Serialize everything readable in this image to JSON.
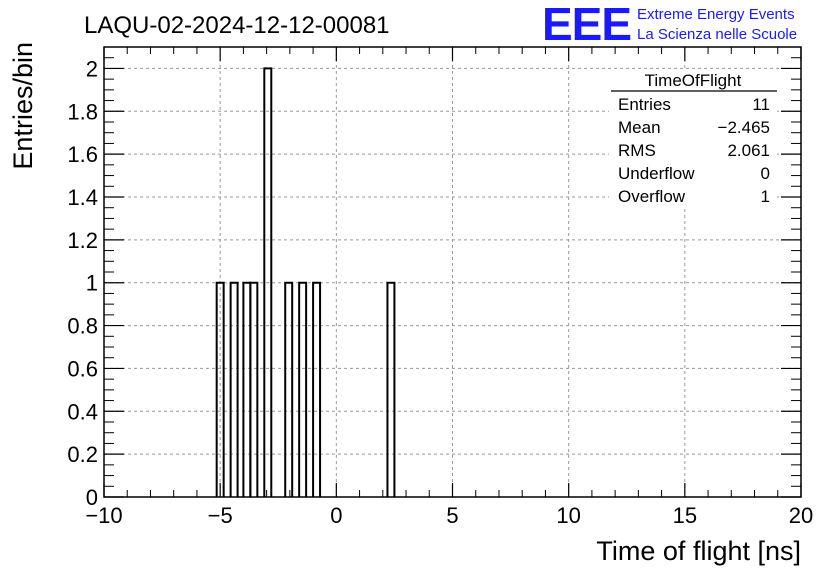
{
  "header": {
    "title": "LAQU-02-2024-12-12-00081",
    "logo_letters": "EEE",
    "logo_line1": "Extreme Energy Events",
    "logo_line2": "La Scienza nelle Scuole",
    "logo_color": "#1a1aff"
  },
  "stats": {
    "title": "TimeOfFlight",
    "rows": [
      {
        "label": "Entries",
        "value": "11"
      },
      {
        "label": "Mean",
        "value": "−2.465"
      },
      {
        "label": "RMS",
        "value": "2.061"
      },
      {
        "label": "Underflow",
        "value": "0"
      },
      {
        "label": "Overflow",
        "value": "1"
      }
    ]
  },
  "chart_data": {
    "type": "bar",
    "histogram": true,
    "xlabel": "Time of flight [ns]",
    "ylabel": "Entries/bin",
    "xlim": [
      -10,
      20
    ],
    "ylim": [
      0,
      2.1
    ],
    "grid": true,
    "bin_width": 0.3,
    "x_ticks": [
      "−10",
      "−5",
      "0",
      "5",
      "10",
      "15",
      "20"
    ],
    "y_ticks": [
      "0",
      "0.2",
      "0.4",
      "0.6",
      "0.8",
      "1",
      "1.2",
      "1.4",
      "1.6",
      "1.8",
      "2"
    ],
    "bins": [
      {
        "x": -5.15,
        "value": 1
      },
      {
        "x": -4.55,
        "value": 1
      },
      {
        "x": -4.0,
        "value": 1
      },
      {
        "x": -3.7,
        "value": 1
      },
      {
        "x": -3.1,
        "value": 2
      },
      {
        "x": -2.2,
        "value": 1
      },
      {
        "x": -1.6,
        "value": 1
      },
      {
        "x": -1.0,
        "value": 1
      },
      {
        "x": 2.2,
        "value": 1
      }
    ],
    "line_color": "#000000"
  }
}
